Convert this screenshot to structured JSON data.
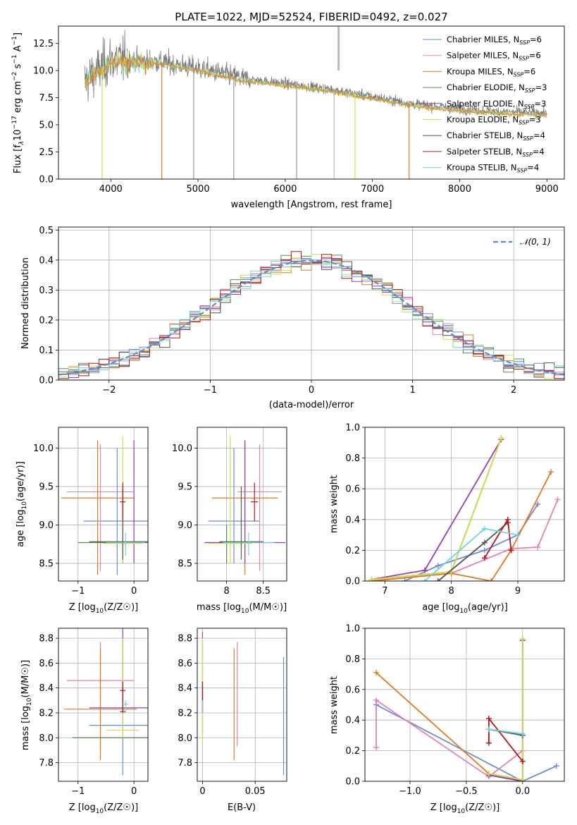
{
  "title": "PLATE=1022, MJD=52524, FIBERID=0492, z=0.027",
  "legend_series": [
    {
      "label": "Chabrier MILES, N",
      "sub": "SSP",
      "suffix": "=6",
      "color": "#6a8cd8"
    },
    {
      "label": "Salpeter MILES, N",
      "sub": "SSP",
      "suffix": "=6",
      "color": "#e383b6"
    },
    {
      "label": "Kroupa MILES, N",
      "sub": "SSP",
      "suffix": "=6",
      "color": "#e07a20"
    },
    {
      "label": "Chabrier ELODIE, N",
      "sub": "SSP",
      "suffix": "=3",
      "color": "#4e8f4e"
    },
    {
      "label": "Salpeter ELODIE, N",
      "sub": "SSP",
      "suffix": "=3",
      "color": "#9b3bb0"
    },
    {
      "label": "Kroupa ELODIE, N",
      "sub": "SSP",
      "suffix": "=3",
      "color": "#cfe04a"
    },
    {
      "label": "Chabrier STELIB, N",
      "sub": "SSP",
      "suffix": "=4",
      "color": "#555555"
    },
    {
      "label": "Salpeter STELIB, N",
      "sub": "SSP",
      "suffix": "=4",
      "color": "#b01818"
    },
    {
      "label": "Kroupa STELIB, N",
      "sub": "SSP",
      "suffix": "=4",
      "color": "#6fd6dc"
    }
  ],
  "hist_legend": "𝒩(0, 1)",
  "chart_data": [
    {
      "type": "line",
      "name": "spectrum",
      "xlabel": "wavelength [Angstrom, rest frame]",
      "ylabel": "Flux [f",
      "xlim": [
        3400,
        9200
      ],
      "ylim": [
        0,
        14.1
      ],
      "xticks": [
        4000,
        5000,
        6000,
        7000,
        8000,
        9000
      ],
      "yticks": [
        0.0,
        2.5,
        5.0,
        7.5,
        10.0,
        12.5
      ],
      "observed_envelope": {
        "x": [
          3700,
          4000,
          4500,
          5000,
          5500,
          6000,
          6500,
          7000,
          7500,
          8000,
          8500,
          9000
        ],
        "y": [
          9.0,
          11.0,
          10.9,
          10.2,
          9.3,
          8.8,
          8.3,
          7.6,
          6.9,
          6.5,
          6.2,
          6.1
        ]
      }
    },
    {
      "type": "bar",
      "name": "residual histogram",
      "xlabel": "(data-model)/error",
      "ylabel": "Normed distribution",
      "xlim": [
        -2.5,
        2.5
      ],
      "ylim": [
        0,
        0.51
      ],
      "xticks": [
        -2,
        -1,
        0,
        1,
        2
      ],
      "yticks": [
        0.0,
        0.1,
        0.2,
        0.3,
        0.4,
        0.5
      ],
      "bin_width": 0.1,
      "gaussian": {
        "mean": 0,
        "sigma": 1
      }
    },
    {
      "type": "scatter",
      "name": "age vs Z",
      "xlabel": "Z [log",
      "ylabel": "age  [log",
      "xlim": [
        -1.35,
        0.25
      ],
      "ylim": [
        8.27,
        10.27
      ],
      "xticks": [
        -1,
        0
      ],
      "yticks": [
        8.5,
        9.0,
        9.5,
        10.0
      ],
      "points": [
        {
          "series": 0,
          "x": -0.3,
          "y": 9.05,
          "xerr": 0.6,
          "yerr": [
            8.35,
            10.0
          ]
        },
        {
          "series": 1,
          "x": -0.6,
          "y": 9.43,
          "xerr": 0.6,
          "yerr": [
            8.4,
            10.05
          ]
        },
        {
          "series": 2,
          "x": -0.65,
          "y": 9.35,
          "xerr": 0.65,
          "yerr": [
            8.35,
            10.1
          ]
        },
        {
          "series": 3,
          "x": -0.2,
          "y": 8.77,
          "xerr": 0.8,
          "yerr": [
            8.5,
            9.0
          ]
        },
        {
          "series": 4,
          "x": 0.0,
          "y": 8.77,
          "xerr": 0.2,
          "yerr": [
            8.5,
            10.1
          ]
        },
        {
          "series": 5,
          "x": -0.2,
          "y": 8.76,
          "xerr": 0.35,
          "yerr": [
            8.5,
            10.15
          ]
        },
        {
          "series": 6,
          "x": -0.2,
          "y": 8.78,
          "xerr": 0.6,
          "yerr": [
            8.55,
            9.5
          ]
        },
        {
          "series": 7,
          "x": -0.2,
          "y": 9.3,
          "xerr": 0.05,
          "yerr": [
            9.05,
            9.55
          ]
        },
        {
          "series": 8,
          "x": -0.15,
          "y": 8.77,
          "xerr": 0.35,
          "yerr": [
            8.6,
            8.9
          ]
        }
      ]
    },
    {
      "type": "scatter",
      "name": "age vs mass",
      "xlabel": "mass [log",
      "ylabel": "",
      "xlim": [
        7.6,
        8.82
      ],
      "ylim": [
        8.27,
        10.27
      ],
      "xticks": [
        8.0,
        8.5
      ],
      "yticks": [
        8.5,
        9.0,
        9.5,
        10.0
      ],
      "points": [
        {
          "series": 0,
          "x": 8.1,
          "y": 9.05,
          "xerr": 0.35,
          "yerr": [
            8.5,
            10.0
          ]
        },
        {
          "series": 1,
          "x": 8.45,
          "y": 9.43,
          "xerr": 0.3,
          "yerr": [
            8.4,
            10.05
          ]
        },
        {
          "series": 2,
          "x": 8.25,
          "y": 9.35,
          "xerr": 0.45,
          "yerr": [
            8.35,
            10.1
          ]
        },
        {
          "series": 3,
          "x": 8.0,
          "y": 8.77,
          "xerr": 0.3,
          "yerr": [
            8.5,
            9.0
          ]
        },
        {
          "series": 4,
          "x": 8.25,
          "y": 8.77,
          "xerr": 0.55,
          "yerr": [
            8.5,
            10.1
          ]
        },
        {
          "series": 5,
          "x": 8.05,
          "y": 8.76,
          "xerr": 0.3,
          "yerr": [
            8.5,
            10.15
          ]
        },
        {
          "series": 6,
          "x": 8.2,
          "y": 8.78,
          "xerr": 0.3,
          "yerr": [
            8.55,
            9.5
          ]
        },
        {
          "series": 7,
          "x": 8.38,
          "y": 9.3,
          "xerr": 0.05,
          "yerr": [
            9.05,
            9.55
          ]
        },
        {
          "series": 8,
          "x": 8.3,
          "y": 8.77,
          "xerr": 0.35,
          "yerr": [
            8.6,
            8.9
          ]
        }
      ]
    },
    {
      "type": "line",
      "name": "mass weight vs age",
      "xlabel": "age  [log",
      "ylabel": "mass weight",
      "xlim": [
        6.7,
        9.7
      ],
      "ylim": [
        0,
        1.0
      ],
      "xticks": [
        7,
        8,
        9
      ],
      "yticks": [
        0.0,
        0.2,
        0.4,
        0.6,
        0.8,
        1.0
      ],
      "series": [
        {
          "series": 0,
          "x": [
            7.3,
            7.8,
            8.5,
            9.0,
            9.3
          ],
          "y": [
            0.0,
            0.1,
            0.2,
            0.3,
            0.5
          ]
        },
        {
          "series": 1,
          "x": [
            6.8,
            8.0,
            8.9,
            9.3,
            9.6
          ],
          "y": [
            0.0,
            0.05,
            0.21,
            0.22,
            0.53
          ]
        },
        {
          "series": 2,
          "x": [
            6.8,
            8.0,
            8.6,
            8.9,
            9.5
          ],
          "y": [
            0.0,
            0.05,
            0.0,
            0.2,
            0.71
          ]
        },
        {
          "series": 3,
          "x": [
            6.8,
            8.0,
            8.75
          ],
          "y": [
            0.01,
            0.06,
            0.93
          ]
        },
        {
          "series": 4,
          "x": [
            6.8,
            7.6,
            8.75
          ],
          "y": [
            0.01,
            0.07,
            0.92
          ]
        },
        {
          "series": 5,
          "x": [
            6.8,
            8.0,
            8.75
          ],
          "y": [
            0.01,
            0.06,
            0.93
          ]
        },
        {
          "series": 6,
          "x": [
            7.8,
            8.5,
            8.85
          ],
          "y": [
            0.0,
            0.25,
            0.38
          ]
        },
        {
          "series": 7,
          "x": [
            8.5,
            8.85,
            8.9
          ],
          "y": [
            0.15,
            0.4,
            0.2
          ]
        },
        {
          "series": 8,
          "x": [
            7.6,
            8.5,
            9.0
          ],
          "y": [
            0.0,
            0.34,
            0.3
          ]
        }
      ]
    },
    {
      "type": "scatter",
      "name": "mass vs Z",
      "xlabel": "Z [log",
      "ylabel": "mass [log",
      "xlim": [
        -1.35,
        0.25
      ],
      "ylim": [
        7.65,
        8.88
      ],
      "xticks": [
        -1,
        0
      ],
      "yticks": [
        7.8,
        8.0,
        8.2,
        8.4,
        8.6,
        8.8
      ],
      "points": [
        {
          "series": 0,
          "x": -0.2,
          "y": 8.1,
          "xerr": 0.6,
          "yerr": [
            7.7,
            8.65
          ]
        },
        {
          "series": 1,
          "x": -0.6,
          "y": 8.46,
          "xerr": 0.6,
          "yerr": [
            7.9,
            8.77
          ]
        },
        {
          "series": 2,
          "x": -0.6,
          "y": 8.23,
          "xerr": 0.65,
          "yerr": [
            7.82,
            8.72
          ]
        },
        {
          "series": 3,
          "x": -0.3,
          "y": 8.0,
          "xerr": 0.8,
          "yerr": [
            8.0,
            8.0
          ]
        },
        {
          "series": 4,
          "x": -0.2,
          "y": 8.24,
          "xerr": 0.6,
          "yerr": [
            8.2,
            8.88
          ]
        },
        {
          "series": 5,
          "x": -0.2,
          "y": 8.06,
          "xerr": 0.3,
          "yerr": [
            8.0,
            8.8
          ]
        },
        {
          "series": 6,
          "x": -0.2,
          "y": 8.21,
          "xerr": 0.05,
          "yerr": [
            8.2,
            8.45
          ]
        },
        {
          "series": 7,
          "x": -0.2,
          "y": 8.38,
          "xerr": 0.05,
          "yerr": [
            8.2,
            8.45
          ]
        },
        {
          "series": 8,
          "x": -0.15,
          "y": 8.27,
          "xerr": 0.05,
          "yerr": [
            8.2,
            8.3
          ]
        }
      ]
    },
    {
      "type": "scatter",
      "name": "mass vs E(B-V)",
      "xlabel": "E(B-V)",
      "ylabel": "",
      "xlim": [
        -0.005,
        0.08
      ],
      "ylim": [
        7.65,
        8.88
      ],
      "xticks": [
        0.0,
        0.05
      ],
      "yticks": [
        7.8,
        8.0,
        8.2,
        8.4,
        8.6,
        8.8
      ],
      "points": [
        {
          "series": 0,
          "x": 0.077,
          "y": 8.1,
          "yerr": [
            7.7,
            8.65
          ]
        },
        {
          "series": 1,
          "x": 0.033,
          "y": 8.46,
          "yerr": [
            7.93,
            8.77
          ]
        },
        {
          "series": 2,
          "x": 0.03,
          "y": 8.23,
          "yerr": [
            7.82,
            8.72
          ]
        },
        {
          "series": 3,
          "x": 0.0,
          "y": 8.0,
          "yerr": [
            8.0,
            8.45
          ]
        },
        {
          "series": 4,
          "x": 0.0,
          "y": 8.24,
          "yerr": [
            8.2,
            8.85
          ]
        },
        {
          "series": 5,
          "x": 0.0,
          "y": 8.06,
          "yerr": [
            7.95,
            8.8
          ]
        },
        {
          "series": 6,
          "x": 0.0,
          "y": 8.21,
          "yerr": [
            8.2,
            8.45
          ]
        },
        {
          "series": 7,
          "x": 0.0,
          "y": 8.38,
          "yerr": [
            8.2,
            8.45
          ]
        },
        {
          "series": 8,
          "x": 0.0,
          "y": 8.27,
          "yerr": [
            8.2,
            8.3
          ]
        }
      ]
    },
    {
      "type": "line",
      "name": "mass weight vs Z",
      "xlabel": "Z [log",
      "ylabel": "mass weight",
      "xlim": [
        -1.4,
        0.37
      ],
      "ylim": [
        0,
        1.0
      ],
      "xticks": [
        -1.0,
        -0.5,
        0.0
      ],
      "yticks": [
        0.0,
        0.2,
        0.4,
        0.6,
        0.8,
        1.0
      ],
      "series": [
        {
          "series": 0,
          "x": [
            -1.3,
            0.0,
            0.3
          ],
          "y": [
            0.5,
            0.0,
            0.1
          ]
        },
        {
          "series": 1,
          "x": [
            -1.3,
            -1.3,
            -0.3,
            0.0
          ],
          "y": [
            0.22,
            0.53,
            0.03,
            0.2
          ]
        },
        {
          "series": 2,
          "x": [
            -1.3,
            -0.3,
            0.0
          ],
          "y": [
            0.71,
            0.05,
            0.0
          ]
        },
        {
          "series": 3,
          "x": [
            -0.3,
            0.0,
            0.0
          ],
          "y": [
            0.05,
            0.01,
            0.93
          ]
        },
        {
          "series": 4,
          "x": [
            -0.3,
            0.0,
            0.0
          ],
          "y": [
            0.04,
            0.0,
            0.92
          ]
        },
        {
          "series": 5,
          "x": [
            -0.3,
            0.0,
            0.0
          ],
          "y": [
            0.05,
            0.01,
            0.93
          ]
        },
        {
          "series": 6,
          "x": [
            -0.3,
            0.0
          ],
          "y": [
            0.34,
            0.3
          ]
        },
        {
          "series": 7,
          "x": [
            -0.3,
            -0.3,
            0.0
          ],
          "y": [
            0.25,
            0.41,
            0.13
          ]
        },
        {
          "series": 8,
          "x": [
            -0.3,
            0.0
          ],
          "y": [
            0.34,
            0.31
          ]
        }
      ]
    }
  ]
}
